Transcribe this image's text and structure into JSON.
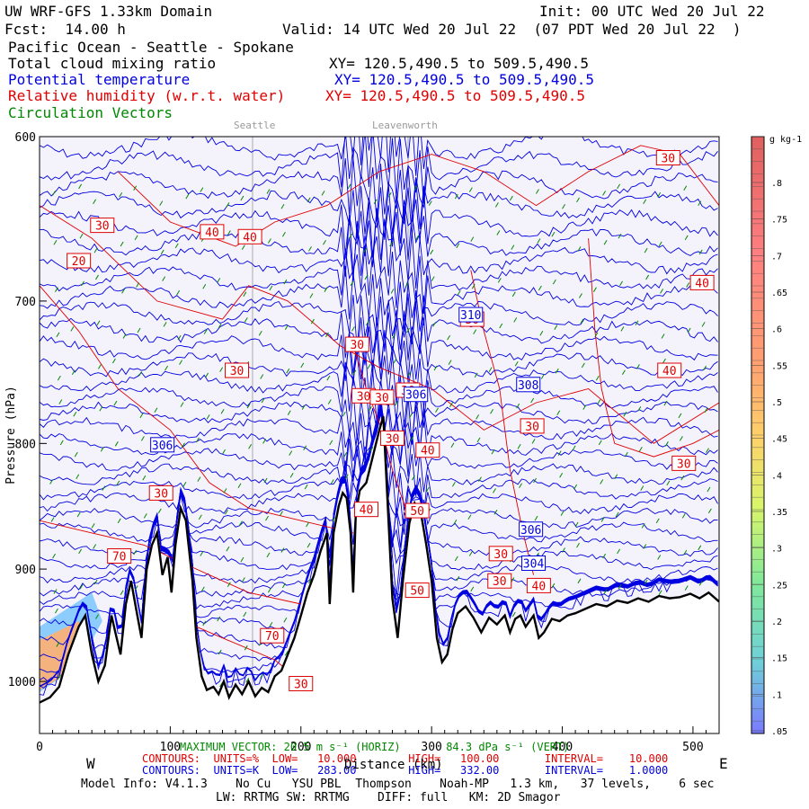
{
  "header": {
    "model": "UW WRF-GFS 1.33km Domain",
    "init": "Init: 00 UTC Wed 20 Jul 22",
    "fcst": "Fcst:  14.00 h",
    "valid": "Valid: 14 UTC Wed 20 Jul 22  (07 PDT Wed 20 Jul 22  )",
    "region": "Pacific Ocean - Seattle - Spokane",
    "var1": "Total cloud mixing ratio",
    "var1_xy": "XY= 120.5,490.5 to 509.5,490.5",
    "var2": "Potential temperature",
    "var2_xy": "XY= 120.5,490.5 to 509.5,490.5",
    "var3": "Relative humidity (w.r.t. water)",
    "var3_xy": "XY= 120.5,490.5 to 509.5,490.5",
    "var4": "Circulation Vectors",
    "colors": {
      "black": "#000000",
      "blue": "#0000e0",
      "red": "#e00000",
      "green": "#008800"
    }
  },
  "chart_data": {
    "type": "cross-section",
    "ylabel": "Pressure (hPa)",
    "xlabel": "Distance (km)",
    "xlim": [
      0,
      520
    ],
    "ylim": [
      1050,
      600
    ],
    "y_scale": "log",
    "x_ticks": [
      0,
      100,
      200,
      300,
      400,
      500
    ],
    "x_tick_labels": [
      "0",
      "100",
      "200",
      "300",
      "400",
      "500"
    ],
    "y_ticks": [
      600,
      700,
      800,
      900,
      1000
    ],
    "y_tick_labels": [
      "600",
      "700",
      "800",
      "900",
      "1000"
    ],
    "top_labels": [
      {
        "text": "Seattle",
        "x": 163
      },
      {
        "text": "Leavenworth",
        "x": 282
      }
    ],
    "west_label": "W",
    "east_label": "E",
    "terrain_profile": [
      [
        0,
        1020
      ],
      [
        8,
        1015
      ],
      [
        15,
        1005
      ],
      [
        22,
        975
      ],
      [
        30,
        950
      ],
      [
        35,
        940
      ],
      [
        40,
        975
      ],
      [
        45,
        1000
      ],
      [
        50,
        985
      ],
      [
        55,
        940
      ],
      [
        58,
        955
      ],
      [
        62,
        975
      ],
      [
        66,
        930
      ],
      [
        70,
        910
      ],
      [
        74,
        935
      ],
      [
        78,
        960
      ],
      [
        82,
        900
      ],
      [
        86,
        880
      ],
      [
        90,
        870
      ],
      [
        94,
        905
      ],
      [
        98,
        890
      ],
      [
        101,
        920
      ],
      [
        104,
        880
      ],
      [
        108,
        850
      ],
      [
        112,
        860
      ],
      [
        117,
        910
      ],
      [
        120,
        960
      ],
      [
        124,
        995
      ],
      [
        128,
        1008
      ],
      [
        133,
        1005
      ],
      [
        137,
        1012
      ],
      [
        141,
        1000
      ],
      [
        145,
        1015
      ],
      [
        150,
        1003
      ],
      [
        155,
        1012
      ],
      [
        160,
        1000
      ],
      [
        165,
        1014
      ],
      [
        170,
        1006
      ],
      [
        175,
        1010
      ],
      [
        180,
        995
      ],
      [
        185,
        990
      ],
      [
        190,
        975
      ],
      [
        195,
        960
      ],
      [
        200,
        940
      ],
      [
        205,
        920
      ],
      [
        210,
        905
      ],
      [
        215,
        885
      ],
      [
        220,
        870
      ],
      [
        222,
        930
      ],
      [
        225,
        870
      ],
      [
        229,
        848
      ],
      [
        232,
        838
      ],
      [
        235,
        842
      ],
      [
        238,
        870
      ],
      [
        240,
        920
      ],
      [
        242,
        855
      ],
      [
        245,
        836
      ],
      [
        250,
        830
      ],
      [
        255,
        810
      ],
      [
        260,
        790
      ],
      [
        263,
        780
      ],
      [
        267,
        860
      ],
      [
        270,
        925
      ],
      [
        274,
        960
      ],
      [
        278,
        910
      ],
      [
        283,
        862
      ],
      [
        287,
        846
      ],
      [
        292,
        855
      ],
      [
        296,
        880
      ],
      [
        300,
        910
      ],
      [
        304,
        960
      ],
      [
        308,
        982
      ],
      [
        312,
        975
      ],
      [
        316,
        952
      ],
      [
        320,
        938
      ],
      [
        326,
        932
      ],
      [
        332,
        942
      ],
      [
        338,
        955
      ],
      [
        344,
        942
      ],
      [
        350,
        948
      ],
      [
        356,
        940
      ],
      [
        360,
        955
      ],
      [
        364,
        943
      ],
      [
        368,
        940
      ],
      [
        372,
        950
      ],
      [
        378,
        940
      ],
      [
        382,
        960
      ],
      [
        386,
        955
      ],
      [
        392,
        943
      ],
      [
        398,
        945
      ],
      [
        404,
        940
      ],
      [
        410,
        938
      ],
      [
        418,
        934
      ],
      [
        426,
        930
      ],
      [
        434,
        932
      ],
      [
        442,
        927
      ],
      [
        450,
        929
      ],
      [
        458,
        925
      ],
      [
        466,
        928
      ],
      [
        474,
        923
      ],
      [
        482,
        925
      ],
      [
        490,
        924
      ],
      [
        498,
        921
      ],
      [
        505,
        925
      ],
      [
        512,
        920
      ],
      [
        520,
        928
      ]
    ],
    "theta_contours": {
      "units": "K",
      "low": 283,
      "high": 332,
      "interval": 1,
      "labels": [
        {
          "text": "306",
          "x": 94,
          "p": 801
        },
        {
          "text": "306",
          "x": 288,
          "p": 764
        },
        {
          "text": "308",
          "x": 374,
          "p": 757
        },
        {
          "text": "310",
          "x": 330,
          "p": 709
        },
        {
          "text": "306",
          "x": 376,
          "p": 867
        },
        {
          "text": "304",
          "x": 378,
          "p": 895
        }
      ]
    },
    "rh_contours": {
      "units": "%",
      "low": 10,
      "high": 100,
      "interval": 10,
      "labels": [
        {
          "text": "30",
          "x": 48,
          "p": 652
        },
        {
          "text": "20",
          "x": 30,
          "p": 674
        },
        {
          "text": "40",
          "x": 132,
          "p": 656
        },
        {
          "text": "40",
          "x": 161,
          "p": 659
        },
        {
          "text": "30",
          "x": 151,
          "p": 747
        },
        {
          "text": "30",
          "x": 243,
          "p": 729
        },
        {
          "text": "30",
          "x": 248,
          "p": 765
        },
        {
          "text": "30",
          "x": 93,
          "p": 838
        },
        {
          "text": "70",
          "x": 61,
          "p": 889
        },
        {
          "text": "70",
          "x": 178,
          "p": 958
        },
        {
          "text": "30",
          "x": 200,
          "p": 1002
        },
        {
          "text": "30",
          "x": 270,
          "p": 796
        },
        {
          "text": "40",
          "x": 297,
          "p": 805
        },
        {
          "text": "40",
          "x": 250,
          "p": 851
        },
        {
          "text": "50",
          "x": 289,
          "p": 852
        },
        {
          "text": "30",
          "x": 262,
          "p": 766
        },
        {
          "text": "30",
          "x": 353,
          "p": 887
        },
        {
          "text": "30",
          "x": 352,
          "p": 910
        },
        {
          "text": "50",
          "x": 289,
          "p": 918
        },
        {
          "text": "40",
          "x": 382,
          "p": 914
        },
        {
          "text": "30",
          "x": 377,
          "p": 787
        },
        {
          "text": "40",
          "x": 482,
          "p": 747
        },
        {
          "text": "30",
          "x": 493,
          "p": 815
        },
        {
          "text": "30",
          "x": 481,
          "p": 612
        },
        {
          "text": "40",
          "x": 507,
          "p": 688
        },
        {
          "text": "30",
          "x": 331,
          "p": 712
        },
        {
          "text": "30",
          "x": 282,
          "p": 761
        }
      ]
    },
    "cloud_colorbar": {
      "units": "g kg-1",
      "labels": [
        ".8",
        ".75",
        ".7",
        ".65",
        ".6",
        ".55",
        ".5",
        ".45",
        ".4",
        ".35",
        ".3",
        ".25",
        ".2",
        ".15",
        ".1",
        ".05"
      ]
    },
    "max_vector": "MAXIMUM VECTOR: 20.5 m s⁻¹ (HORIZ)       84.3 dPa s⁻¹ (VERT)"
  },
  "footer": {
    "rh_line": "CONTOURS:  UNITS=%  LOW=   10.000        HIGH=   100.00       INTERVAL=    10.000",
    "th_line": "CONTOURS:  UNITS=K  LOW=   283.00        HIGH=   332.00       INTERVAL=    1.0000",
    "xlabel": "Distance (km)",
    "model_info": "Model Info: V4.1.3    No Cu   YSU PBL  Thompson    Noah-MP   1.3 km,   37 levels,    6 sec",
    "model_info2": "LW: RRTMG SW: RRTMG    DIFF: full   KM: 2D Smagor"
  }
}
